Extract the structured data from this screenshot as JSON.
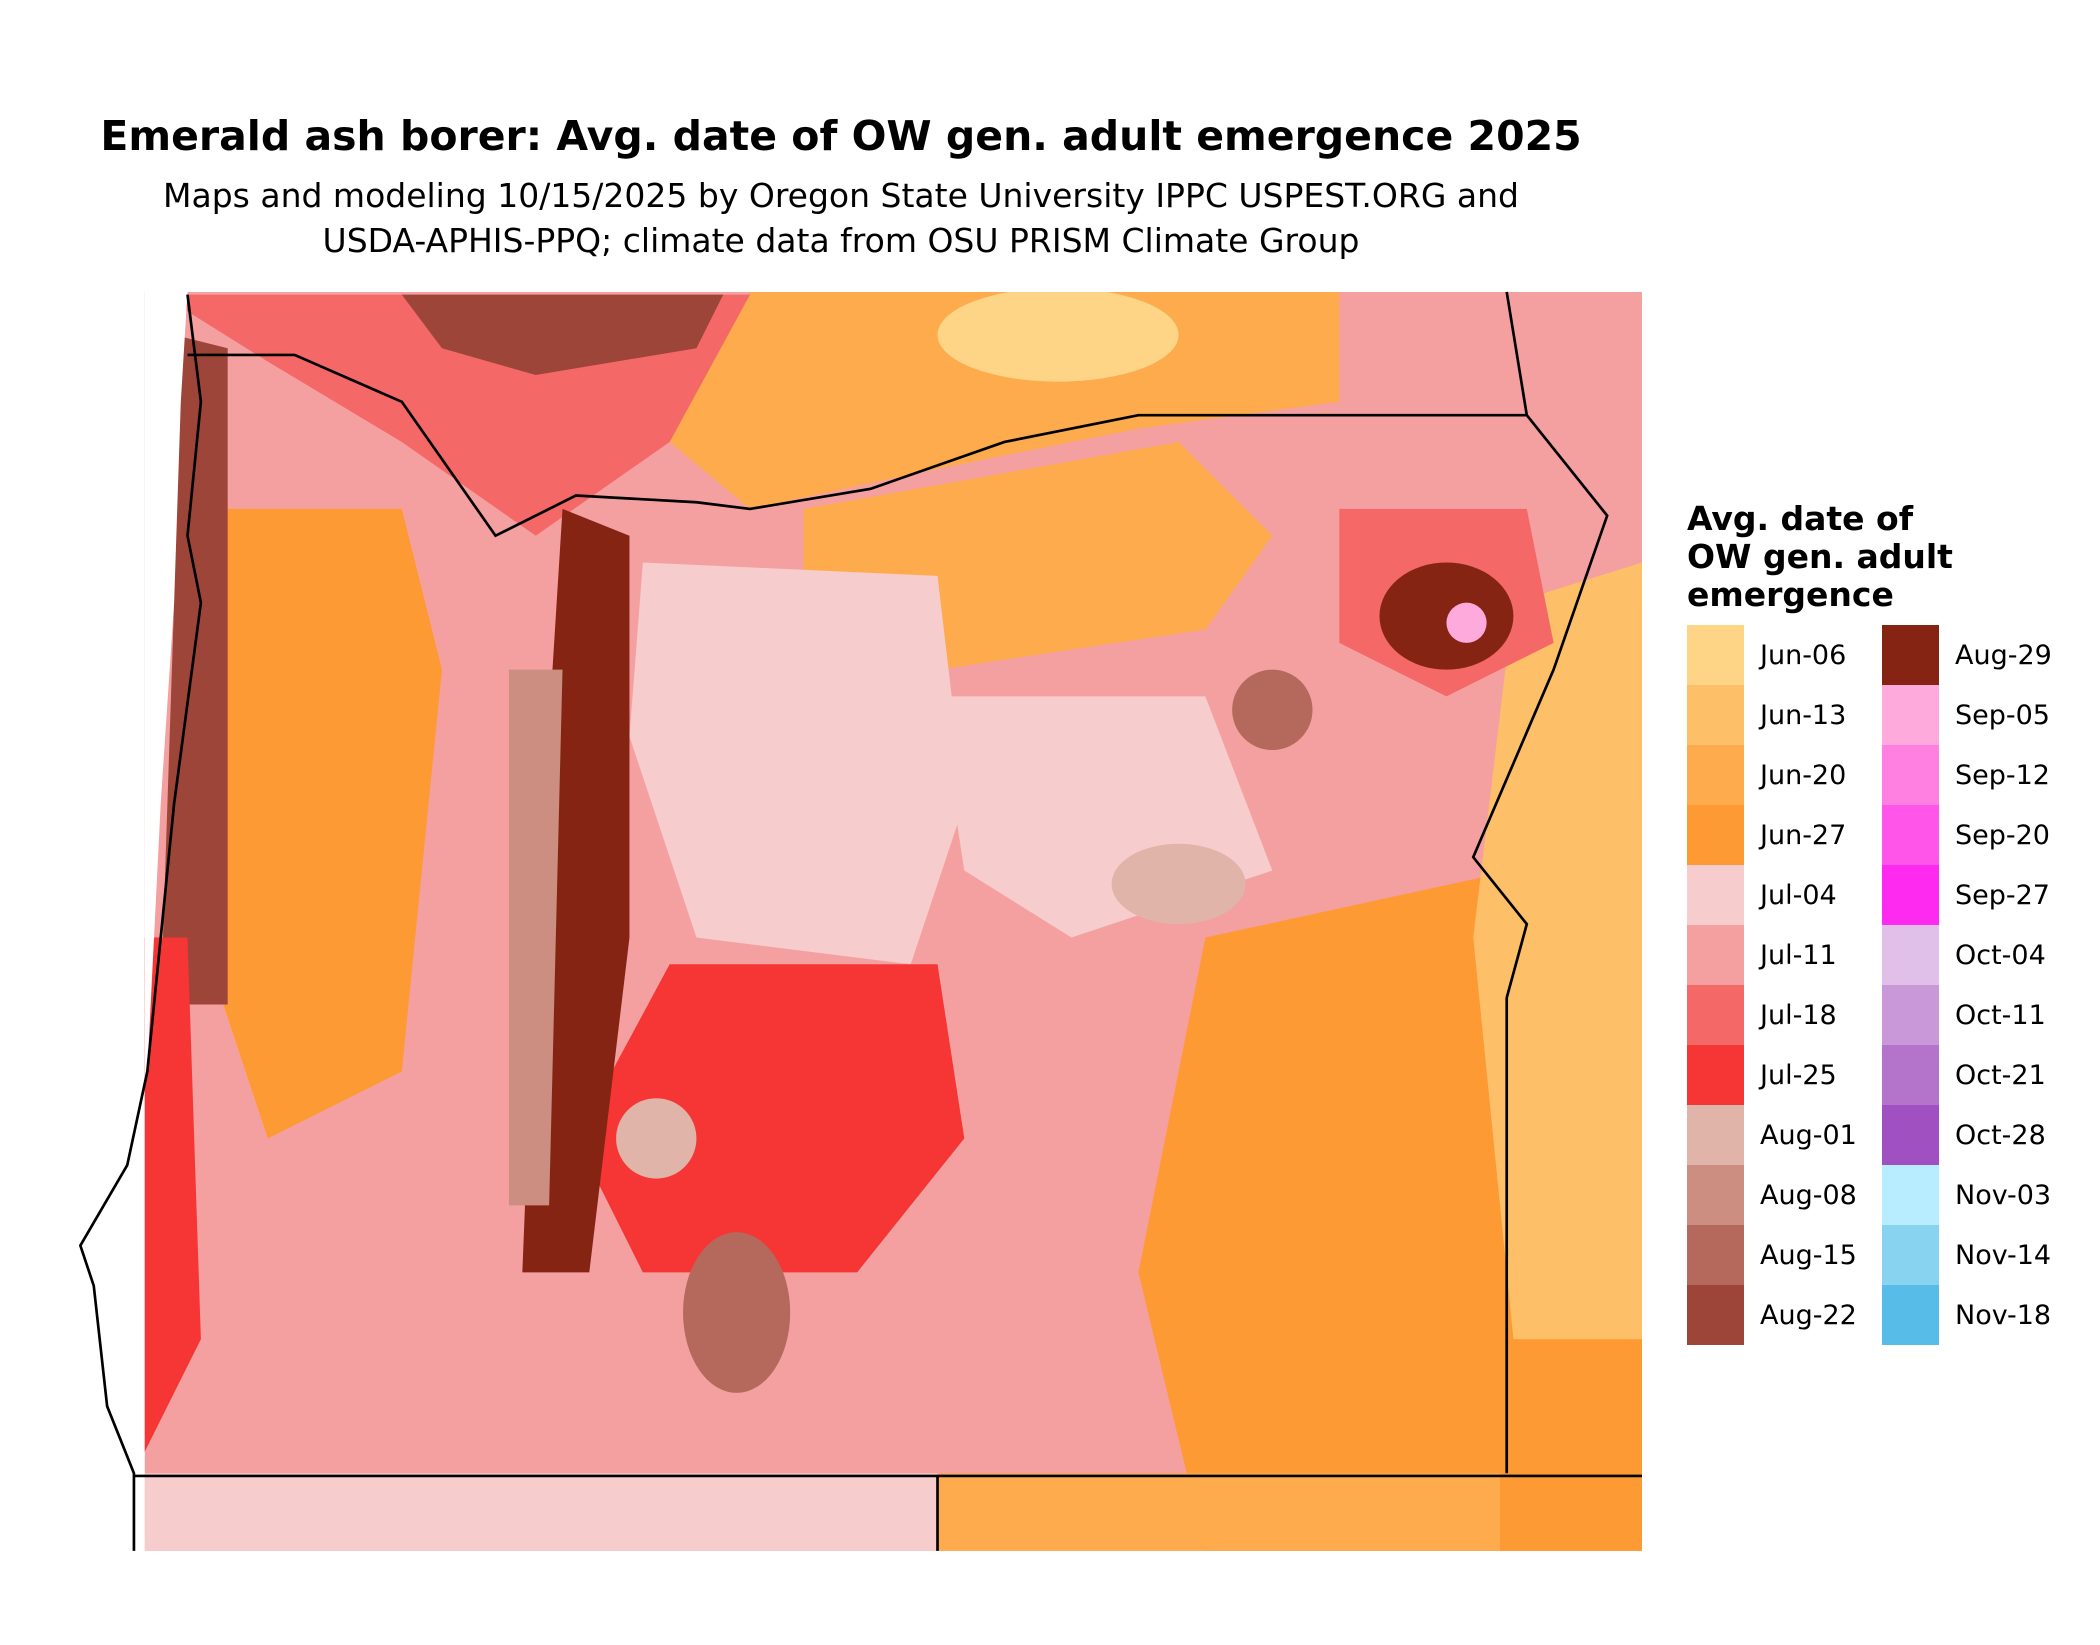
{
  "title": "Emerald ash borer: Avg. date of OW gen. adult emergence 2025",
  "subtitle": [
    "Maps and modeling 10/15/2025 by Oregon State University IPPC USPEST.ORG and",
    "USDA-APHIS-PPQ; climate data from OSU PRISM Climate Group"
  ],
  "legend": {
    "title": [
      "Avg. date of",
      "OW gen. adult",
      "emergence"
    ],
    "items": [
      {
        "label": "Jun-06",
        "color": "#fed586"
      },
      {
        "label": "Jun-13",
        "color": "#fdbf67"
      },
      {
        "label": "Jun-20",
        "color": "#fdab4d"
      },
      {
        "label": "Jun-27",
        "color": "#fd9a33"
      },
      {
        "label": "Jul-04",
        "color": "#f6cccc"
      },
      {
        "label": "Jul-11",
        "color": "#f4a0a0"
      },
      {
        "label": "Jul-18",
        "color": "#f46868"
      },
      {
        "label": "Jul-25",
        "color": "#f63535"
      },
      {
        "label": "Aug-01",
        "color": "#e0b4a8"
      },
      {
        "label": "Aug-08",
        "color": "#cc8e80"
      },
      {
        "label": "Aug-15",
        "color": "#b4695c"
      },
      {
        "label": "Aug-22",
        "color": "#9c4538"
      },
      {
        "label": "Aug-29",
        "color": "#862414"
      },
      {
        "label": "Sep-05",
        "color": "#ffaadd"
      },
      {
        "label": "Sep-12",
        "color": "#ff80e0"
      },
      {
        "label": "Sep-20",
        "color": "#ff55e8"
      },
      {
        "label": "Sep-27",
        "color": "#ff2af0"
      },
      {
        "label": "Oct-04",
        "color": "#e0c0e8"
      },
      {
        "label": "Oct-11",
        "color": "#c898d8"
      },
      {
        "label": "Oct-21",
        "color": "#b474cc"
      },
      {
        "label": "Oct-28",
        "color": "#a050c0"
      },
      {
        "label": "Nov-03",
        "color": "#b8ecff"
      },
      {
        "label": "Nov-14",
        "color": "#88d4f0"
      },
      {
        "label": "Nov-18",
        "color": "#58bce8"
      }
    ]
  }
}
